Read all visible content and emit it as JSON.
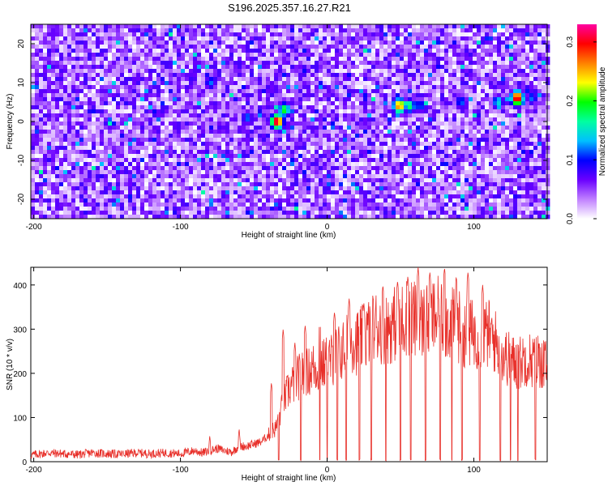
{
  "title": "S196.2025.357.16.27.R21",
  "chart_data": [
    {
      "type": "heatmap",
      "title": "S196.2025.357.16.27.R21",
      "xlabel": "Height of straight line (km)",
      "ylabel": "Frequency (Hz)",
      "xlim": [
        -202,
        150
      ],
      "ylim": [
        -25,
        25
      ],
      "xticks": [
        "-200",
        "-100",
        "0",
        "100"
      ],
      "yticks": [
        "20",
        "10",
        "0",
        "-10",
        "-20"
      ],
      "colorbar": {
        "label": "Normalized spectral amplitude",
        "range": [
          0.0,
          0.33
        ],
        "ticks": [
          "0.0",
          "0.1",
          "0.2",
          "0.3"
        ]
      },
      "colormap": [
        "#ffffff",
        "#c080ff",
        "#6a00ff",
        "#0000ff",
        "#00c0ff",
        "#00ffa0",
        "#00ff00",
        "#ffff00",
        "#ff8000",
        "#ff0000",
        "#ff00a0"
      ],
      "noise_level": 0.05,
      "hotspots": [
        {
          "x": -35,
          "y": 0,
          "value": 0.33
        },
        {
          "x": -30,
          "y": 3,
          "value": 0.2
        },
        {
          "x": -55,
          "y": 1,
          "value": 0.12
        },
        {
          "x": -80,
          "y": 10,
          "value": 0.12
        },
        {
          "x": 48,
          "y": 4,
          "value": 0.28
        },
        {
          "x": 55,
          "y": 4,
          "value": 0.18
        },
        {
          "x": 62,
          "y": 4,
          "value": 0.12
        },
        {
          "x": 128,
          "y": 6,
          "value": 0.33
        },
        {
          "x": 115,
          "y": 5,
          "value": 0.15
        },
        {
          "x": 138,
          "y": 6,
          "value": 0.12
        },
        {
          "x": 90,
          "y": 5,
          "value": 0.12
        }
      ]
    },
    {
      "type": "line",
      "xlabel": "Height of straight line (km)",
      "ylabel": "SNR (10 * v/v)",
      "xlim": [
        -202,
        150
      ],
      "ylim": [
        0,
        440
      ],
      "xticks": [
        "-200",
        "-100",
        "0",
        "100"
      ],
      "yticks": [
        "0",
        "100",
        "200",
        "300",
        "400"
      ],
      "color": "#e8302a",
      "series": [
        {
          "x": [
            -202,
            -190,
            -180,
            -170,
            -160,
            -150,
            -140,
            -130,
            -120,
            -110,
            -100,
            -95,
            -90,
            -85,
            -80,
            -75,
            -70,
            -65,
            -60,
            -55,
            -50,
            -45,
            -40,
            -38,
            -35,
            -32,
            -30,
            -28,
            -25,
            -22,
            -20,
            -18,
            -15,
            -12,
            -10,
            -8,
            -5,
            -2,
            0,
            3,
            5,
            8,
            10,
            13,
            15,
            18,
            20,
            25,
            30,
            35,
            40,
            45,
            50,
            55,
            60,
            65,
            70,
            75,
            80,
            85,
            90,
            95,
            100,
            105,
            110,
            115,
            120,
            125,
            130,
            135,
            140,
            145,
            150
          ],
          "y": [
            15,
            20,
            18,
            16,
            20,
            18,
            17,
            20,
            18,
            20,
            18,
            22,
            25,
            20,
            25,
            30,
            25,
            22,
            35,
            35,
            40,
            45,
            60,
            70,
            75,
            110,
            130,
            150,
            170,
            180,
            190,
            195,
            200,
            205,
            215,
            210,
            215,
            220,
            225,
            230,
            240,
            245,
            250,
            260,
            270,
            280,
            270,
            280,
            300,
            310,
            300,
            310,
            320,
            330,
            320,
            315,
            320,
            330,
            320,
            310,
            305,
            290,
            290,
            285,
            290,
            270,
            240,
            230,
            220,
            235,
            230,
            230,
            215
          ],
          "spikes": [
            {
              "x": -80,
              "y": 60
            },
            {
              "x": -60,
              "y": 75
            },
            {
              "x": -38,
              "y": 180
            },
            {
              "x": -30,
              "y": 300
            },
            {
              "x": -22,
              "y": 270
            },
            {
              "x": -15,
              "y": 310
            },
            {
              "x": -5,
              "y": 320
            },
            {
              "x": 5,
              "y": 340
            },
            {
              "x": 15,
              "y": 370
            },
            {
              "x": 25,
              "y": 360
            },
            {
              "x": 38,
              "y": 400
            },
            {
              "x": 48,
              "y": 410
            },
            {
              "x": 55,
              "y": 420
            },
            {
              "x": 62,
              "y": 440
            },
            {
              "x": 70,
              "y": 430
            },
            {
              "x": 80,
              "y": 440
            },
            {
              "x": 88,
              "y": 420
            },
            {
              "x": 96,
              "y": 430
            },
            {
              "x": 106,
              "y": 400
            },
            {
              "x": 130,
              "y": 280
            },
            {
              "x": 142,
              "y": 300
            }
          ],
          "dropouts": [
            -33,
            -18,
            -5,
            0,
            7,
            13,
            22,
            30,
            40,
            50,
            57,
            67,
            77,
            85,
            92,
            104,
            118,
            125,
            130,
            142
          ]
        }
      ]
    }
  ]
}
